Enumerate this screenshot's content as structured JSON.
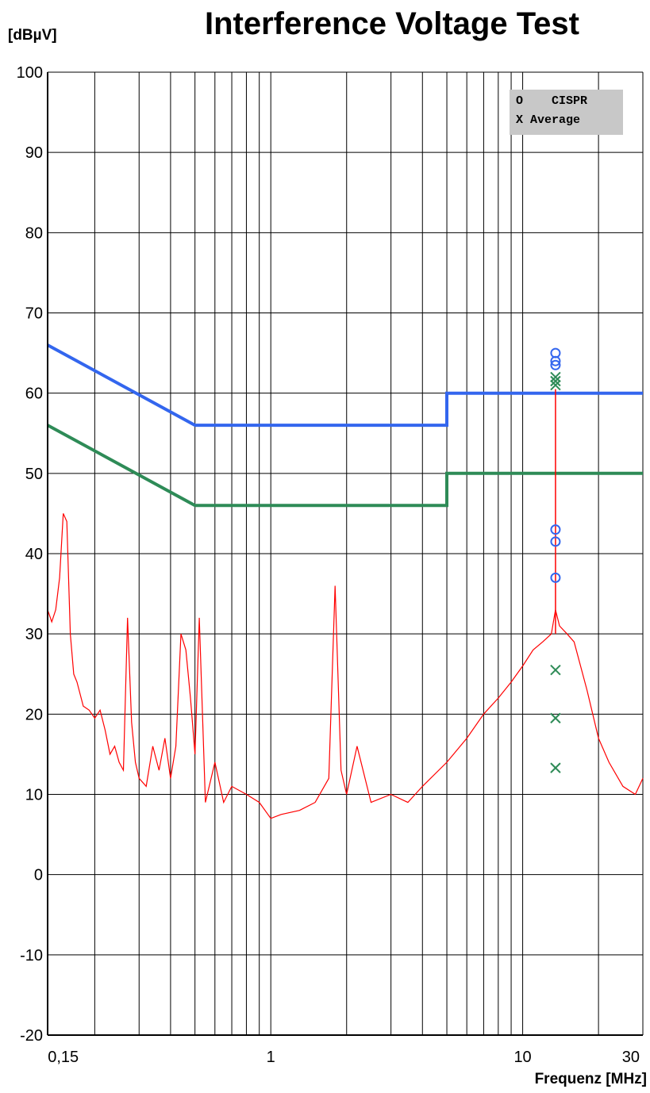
{
  "chart_data": {
    "type": "line",
    "title": "Interference Voltage Test",
    "ylabel": "[dBµV]",
    "xlabel": "Frequenz [MHz]",
    "x_scale": "log",
    "xlim": [
      0.13,
      30
    ],
    "ylim": [
      -20,
      100
    ],
    "y_ticks": [
      100,
      90,
      80,
      70,
      60,
      50,
      40,
      30,
      20,
      10,
      0,
      -10,
      -20
    ],
    "x_tick_labels": [
      {
        "x": 0.15,
        "label": "0,15"
      },
      {
        "x": 1,
        "label": "1"
      },
      {
        "x": 10,
        "label": "10"
      },
      {
        "x": 30,
        "label": "30"
      }
    ],
    "grid": true,
    "legend": {
      "placement": "top-right",
      "entries": [
        "O    CISPR",
        "X Average"
      ]
    },
    "colors": {
      "qp_limit": "#3366ee",
      "avg_limit": "#2e8b57",
      "trace": "#ff0000",
      "qp_marker": "#3366ee",
      "avg_marker": "#2e8b57",
      "legend_bg": "#c8c8c8"
    },
    "series": [
      {
        "role": "qp_limit",
        "points": [
          [
            0.13,
            66
          ],
          [
            0.5,
            56
          ],
          [
            5,
            56
          ],
          [
            5,
            60
          ],
          [
            30,
            60
          ]
        ]
      },
      {
        "role": "avg_limit",
        "points": [
          [
            0.13,
            56
          ],
          [
            0.5,
            46
          ],
          [
            5,
            46
          ],
          [
            5,
            50
          ],
          [
            30,
            50
          ]
        ]
      },
      {
        "role": "trace",
        "points": [
          [
            0.13,
            33
          ],
          [
            0.135,
            31.5
          ],
          [
            0.14,
            33
          ],
          [
            0.145,
            37
          ],
          [
            0.15,
            45
          ],
          [
            0.155,
            44
          ],
          [
            0.16,
            30
          ],
          [
            0.165,
            25
          ],
          [
            0.17,
            24
          ],
          [
            0.18,
            21
          ],
          [
            0.19,
            20.5
          ],
          [
            0.2,
            19.5
          ],
          [
            0.21,
            20.5
          ],
          [
            0.22,
            18
          ],
          [
            0.23,
            15
          ],
          [
            0.24,
            16
          ],
          [
            0.25,
            14
          ],
          [
            0.26,
            13
          ],
          [
            0.27,
            32
          ],
          [
            0.28,
            19
          ],
          [
            0.29,
            14
          ],
          [
            0.3,
            12
          ],
          [
            0.32,
            11
          ],
          [
            0.34,
            16
          ],
          [
            0.36,
            13
          ],
          [
            0.38,
            17
          ],
          [
            0.4,
            12
          ],
          [
            0.42,
            16
          ],
          [
            0.44,
            30
          ],
          [
            0.46,
            28
          ],
          [
            0.48,
            22
          ],
          [
            0.5,
            15
          ],
          [
            0.52,
            32
          ],
          [
            0.55,
            9
          ],
          [
            0.6,
            14
          ],
          [
            0.65,
            9
          ],
          [
            0.7,
            11
          ],
          [
            0.8,
            10
          ],
          [
            0.9,
            9
          ],
          [
            1.0,
            7
          ],
          [
            1.1,
            7.5
          ],
          [
            1.3,
            8
          ],
          [
            1.5,
            9
          ],
          [
            1.7,
            12
          ],
          [
            1.8,
            36
          ],
          [
            1.9,
            13
          ],
          [
            2.0,
            10
          ],
          [
            2.2,
            16
          ],
          [
            2.5,
            9
          ],
          [
            3.0,
            10
          ],
          [
            3.5,
            9
          ],
          [
            4.0,
            11
          ],
          [
            5.0,
            14
          ],
          [
            6.0,
            17
          ],
          [
            7.0,
            20
          ],
          [
            8.0,
            22
          ],
          [
            9.0,
            24
          ],
          [
            10.0,
            26
          ],
          [
            11.0,
            28
          ],
          [
            12.0,
            29
          ],
          [
            13.0,
            30
          ],
          [
            13.5,
            33
          ],
          [
            14.0,
            31
          ],
          [
            15.0,
            30
          ],
          [
            16.0,
            29
          ],
          [
            18.0,
            23
          ],
          [
            20.0,
            17
          ],
          [
            22.0,
            14
          ],
          [
            25.0,
            11
          ],
          [
            28.0,
            10
          ],
          [
            30.0,
            12
          ]
        ]
      }
    ],
    "markers": {
      "qp": [
        [
          13.5,
          65
        ],
        [
          13.5,
          64
        ],
        [
          13.5,
          63.5
        ],
        [
          13.5,
          43
        ],
        [
          13.5,
          41.5
        ],
        [
          13.5,
          37
        ]
      ],
      "avg": [
        [
          13.5,
          62
        ],
        [
          13.5,
          61.5
        ],
        [
          13.5,
          61
        ],
        [
          13.5,
          25.5
        ],
        [
          13.5,
          19.5
        ],
        [
          13.5,
          13.3
        ]
      ]
    }
  }
}
